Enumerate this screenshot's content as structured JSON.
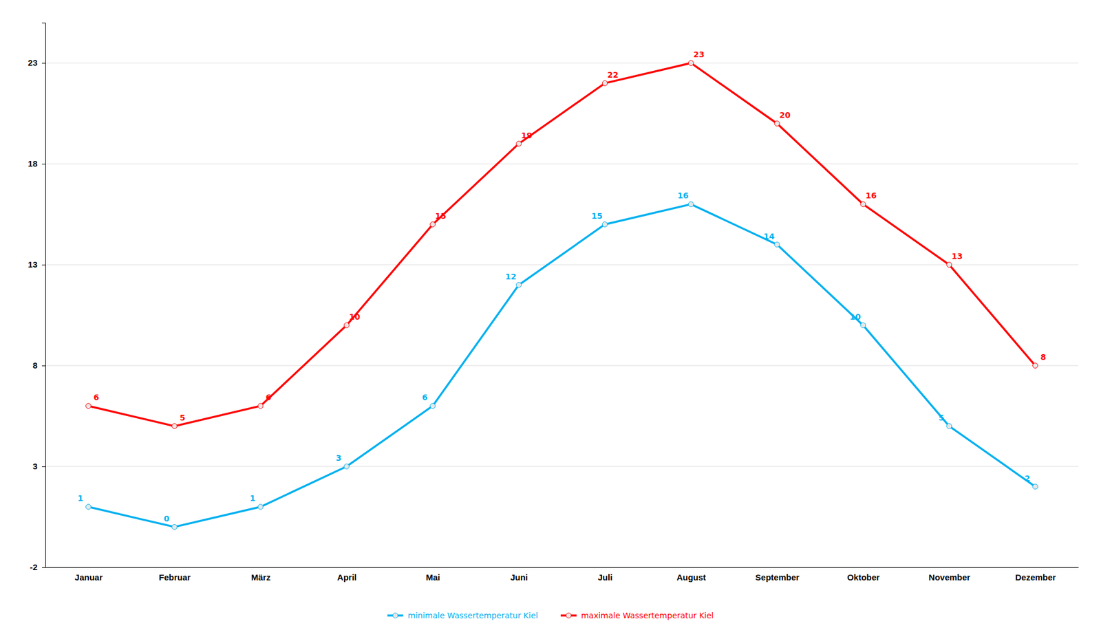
{
  "chart_data": {
    "type": "line",
    "categories": [
      "Januar",
      "Februar",
      "März",
      "April",
      "Mai",
      "Juni",
      "Juli",
      "August",
      "September",
      "Oktober",
      "November",
      "Dezember"
    ],
    "series": [
      {
        "name": "minimale Wassertemperatur Kiel",
        "color": "#00B0F0",
        "marker": "circle",
        "line_style": "solid",
        "values": [
          1,
          0,
          1,
          3,
          6,
          12,
          15,
          16,
          14,
          10,
          5,
          2
        ]
      },
      {
        "name": "maximale Wassertemperatur Kiel",
        "color": "#FF0000",
        "marker": "circle",
        "line_style": "solid",
        "values": [
          6,
          5,
          6,
          10,
          15,
          19,
          22,
          23,
          20,
          16,
          13,
          8
        ]
      }
    ],
    "ylim": [
      -2,
      25
    ],
    "yticks": [
      -2,
      3,
      8,
      13,
      18,
      23
    ],
    "grid": true,
    "data_labels": true,
    "legend": "bottom"
  }
}
